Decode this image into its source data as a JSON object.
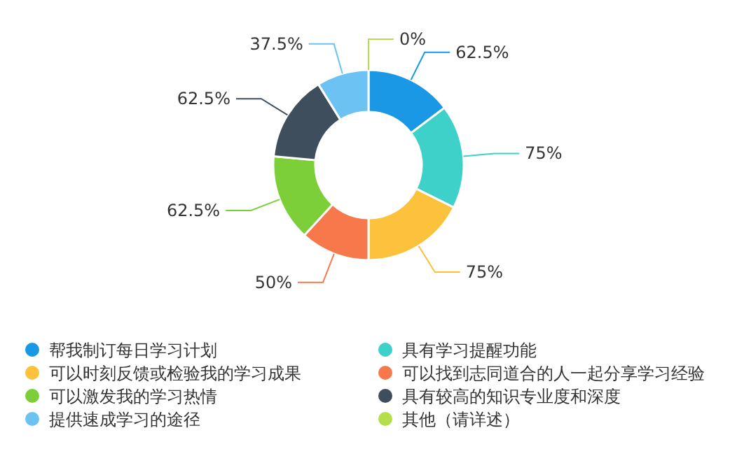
{
  "chart_data": {
    "type": "donut",
    "categories": [
      "帮我制订每日学习计划",
      "具有学习提醒功能",
      "可以时刻反馈或检验我的学习成果",
      "可以找到志同道合的人一起分享学习经验",
      "可以激发我的学习热情",
      "具有较高的知识专业度和深度",
      "提供速成学习的途径",
      "其他（请详述）"
    ],
    "values": [
      62.5,
      75,
      75,
      50,
      62.5,
      62.5,
      37.5,
      0
    ],
    "value_labels": [
      "62.5%",
      "75%",
      "75%",
      "50%",
      "62.5%",
      "62.5%",
      "37.5%",
      "0%"
    ],
    "colors": [
      "#1a98e6",
      "#3dd1c9",
      "#fcc23c",
      "#f7794b",
      "#7dcf3a",
      "#3e4e5d",
      "#6cc3f3",
      "#b4df4a"
    ],
    "legend": "bottom"
  }
}
